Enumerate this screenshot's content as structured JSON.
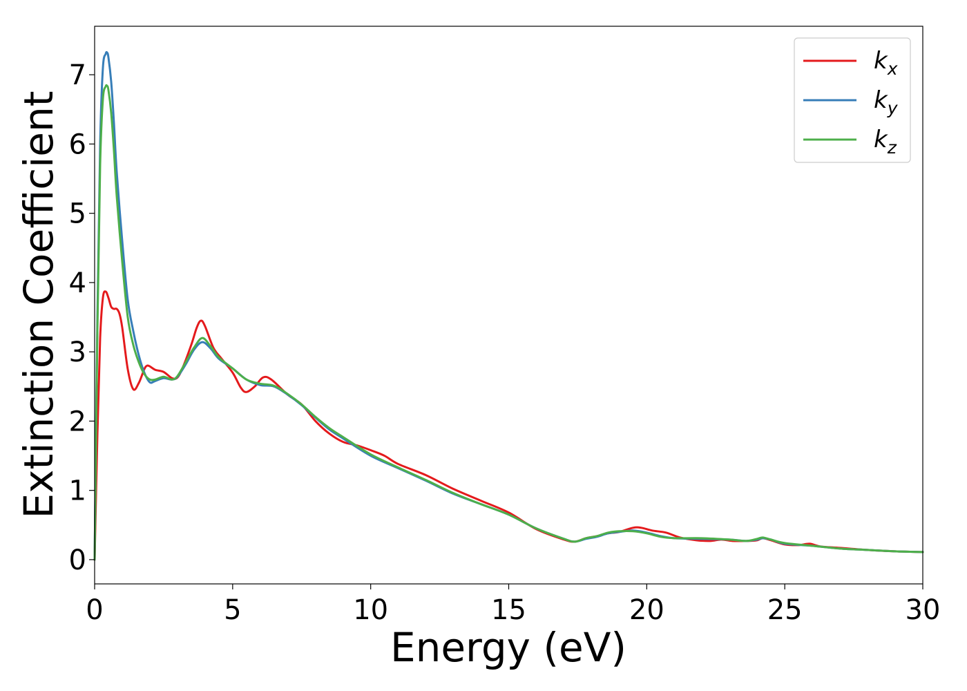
{
  "chart_data": {
    "type": "line",
    "title": "",
    "xlabel": "Energy (eV)",
    "ylabel": "Extinction Coefficient",
    "xlim": [
      0,
      30
    ],
    "ylim": [
      -0.35,
      7.7
    ],
    "xticks": [
      0,
      5,
      10,
      15,
      20,
      25,
      30
    ],
    "yticks": [
      0,
      1,
      2,
      3,
      4,
      5,
      6,
      7
    ],
    "grid": false,
    "legend_position": "top-right",
    "series": [
      {
        "name": "k",
        "subscript": "x",
        "color": "#e41a1c",
        "x": [
          0,
          0.1,
          0.2,
          0.3,
          0.4,
          0.5,
          0.6,
          0.7,
          0.8,
          0.9,
          1.0,
          1.2,
          1.4,
          1.6,
          1.8,
          1.9,
          2.0,
          2.2,
          2.5,
          2.8,
          3.0,
          3.2,
          3.5,
          3.7,
          3.85,
          4.0,
          4.3,
          4.6,
          5.0,
          5.3,
          5.5,
          5.8,
          6.1,
          6.4,
          7.0,
          7.5,
          8.0,
          8.5,
          9.0,
          9.5,
          10.0,
          10.5,
          11.0,
          12.0,
          13.0,
          14.0,
          15.0,
          16.0,
          17.0,
          17.4,
          17.8,
          18.2,
          18.6,
          19.0,
          19.5,
          19.8,
          20.2,
          20.7,
          21.2,
          21.8,
          22.3,
          22.7,
          23.1,
          23.6,
          24.0,
          24.2,
          24.5,
          25.0,
          25.5,
          25.9,
          26.3,
          27.0,
          28.0,
          29.0,
          30.0
        ],
        "values": [
          0.0,
          1.8,
          3.2,
          3.78,
          3.87,
          3.78,
          3.65,
          3.62,
          3.62,
          3.55,
          3.35,
          2.75,
          2.46,
          2.55,
          2.75,
          2.8,
          2.79,
          2.74,
          2.71,
          2.62,
          2.63,
          2.78,
          3.1,
          3.35,
          3.45,
          3.37,
          3.06,
          2.9,
          2.7,
          2.48,
          2.42,
          2.5,
          2.63,
          2.6,
          2.38,
          2.24,
          2.0,
          1.82,
          1.7,
          1.65,
          1.58,
          1.5,
          1.38,
          1.22,
          1.02,
          0.85,
          0.68,
          0.44,
          0.29,
          0.26,
          0.31,
          0.34,
          0.38,
          0.4,
          0.46,
          0.46,
          0.42,
          0.39,
          0.32,
          0.28,
          0.27,
          0.29,
          0.27,
          0.27,
          0.28,
          0.31,
          0.28,
          0.22,
          0.21,
          0.23,
          0.19,
          0.17,
          0.14,
          0.12,
          0.11
        ]
      },
      {
        "name": "k",
        "subscript": "y",
        "color": "#377eb8",
        "x": [
          0,
          0.1,
          0.2,
          0.3,
          0.4,
          0.45,
          0.5,
          0.6,
          0.7,
          0.8,
          1.0,
          1.2,
          1.4,
          1.6,
          1.8,
          2.0,
          2.2,
          2.5,
          2.8,
          3.0,
          3.3,
          3.6,
          3.9,
          4.2,
          4.5,
          5.0,
          5.5,
          6.0,
          6.5,
          7.0,
          7.5,
          8.0,
          8.5,
          9.0,
          10.0,
          11.0,
          12.0,
          13.0,
          14.0,
          15.0,
          16.0,
          17.0,
          17.4,
          17.8,
          18.2,
          18.6,
          19.0,
          19.5,
          20.0,
          20.5,
          21.0,
          22.0,
          23.0,
          23.6,
          24.0,
          24.2,
          24.5,
          25.0,
          26.0,
          27.0,
          28.0,
          29.0,
          30.0
        ],
        "values": [
          0.0,
          3.5,
          6.0,
          7.1,
          7.3,
          7.32,
          7.25,
          6.9,
          6.3,
          5.6,
          4.6,
          3.75,
          3.3,
          2.95,
          2.7,
          2.56,
          2.58,
          2.62,
          2.6,
          2.64,
          2.82,
          3.03,
          3.14,
          3.05,
          2.9,
          2.76,
          2.6,
          2.52,
          2.5,
          2.38,
          2.23,
          2.05,
          1.88,
          1.75,
          1.5,
          1.32,
          1.14,
          0.95,
          0.8,
          0.65,
          0.45,
          0.3,
          0.26,
          0.3,
          0.33,
          0.38,
          0.4,
          0.42,
          0.39,
          0.34,
          0.31,
          0.3,
          0.29,
          0.27,
          0.29,
          0.31,
          0.29,
          0.23,
          0.2,
          0.16,
          0.14,
          0.12,
          0.11
        ]
      },
      {
        "name": "k",
        "subscript": "z",
        "color": "#4daf4a",
        "x": [
          0,
          0.1,
          0.2,
          0.3,
          0.4,
          0.45,
          0.5,
          0.6,
          0.7,
          0.8,
          1.0,
          1.2,
          1.4,
          1.6,
          1.8,
          2.0,
          2.2,
          2.5,
          2.8,
          3.0,
          3.3,
          3.6,
          3.9,
          4.2,
          4.5,
          5.0,
          5.5,
          6.0,
          6.5,
          7.0,
          7.5,
          8.0,
          8.5,
          9.0,
          10.0,
          11.0,
          12.0,
          13.0,
          14.0,
          15.0,
          16.0,
          17.0,
          17.4,
          17.8,
          18.2,
          18.6,
          19.0,
          19.5,
          20.0,
          20.5,
          21.0,
          22.0,
          23.0,
          23.6,
          24.0,
          24.2,
          24.5,
          25.0,
          26.0,
          27.0,
          28.0,
          29.0,
          30.0
        ],
        "values": [
          0.0,
          3.3,
          5.7,
          6.65,
          6.83,
          6.84,
          6.78,
          6.45,
          5.9,
          5.25,
          4.3,
          3.5,
          3.1,
          2.85,
          2.68,
          2.6,
          2.6,
          2.64,
          2.6,
          2.65,
          2.85,
          3.06,
          3.2,
          3.08,
          2.92,
          2.76,
          2.6,
          2.54,
          2.51,
          2.39,
          2.24,
          2.06,
          1.9,
          1.77,
          1.52,
          1.33,
          1.15,
          0.96,
          0.8,
          0.65,
          0.45,
          0.3,
          0.26,
          0.31,
          0.34,
          0.39,
          0.41,
          0.41,
          0.38,
          0.33,
          0.31,
          0.31,
          0.29,
          0.27,
          0.3,
          0.32,
          0.29,
          0.24,
          0.2,
          0.16,
          0.14,
          0.12,
          0.11
        ]
      }
    ]
  }
}
